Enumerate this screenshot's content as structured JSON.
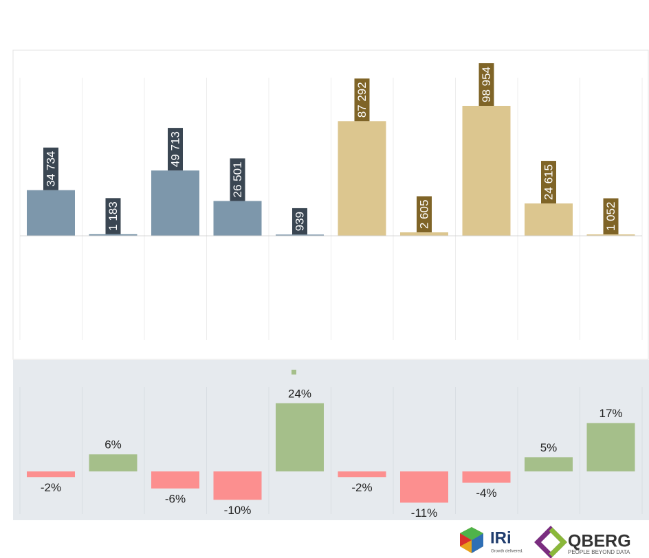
{
  "chart_data": [
    {
      "type": "bar",
      "values": [
        34734,
        1183,
        49713,
        26501,
        939,
        87292,
        2605,
        98954,
        24615,
        1052
      ],
      "value_labels": [
        "34 734",
        "1 183",
        "49 713",
        "26 501",
        "939",
        "87 292",
        "2 605",
        "98 954",
        "24 615",
        "1 052"
      ],
      "colors": [
        "#7d97ab",
        "#7d97ab",
        "#7d97ab",
        "#7d97ab",
        "#7d97ab",
        "#dcc68f",
        "#dcc68f",
        "#dcc68f",
        "#dcc68f",
        "#dcc68f"
      ],
      "label_colors": [
        "#3a4652",
        "#3a4652",
        "#3a4652",
        "#3a4652",
        "#3a4652",
        "#7f6427",
        "#7f6427",
        "#7f6427",
        "#7f6427",
        "#7f6427"
      ],
      "ylim": [
        -80000,
        100000
      ]
    },
    {
      "type": "bar",
      "values": [
        -2,
        6,
        -6,
        -10,
        24,
        -2,
        -11,
        -4,
        5,
        17
      ],
      "value_labels": [
        "-2%",
        "6%",
        "-6%",
        "-10%",
        "24%",
        "-2%",
        "-11%",
        "-4%",
        "5%",
        "17%"
      ],
      "positive_color": "#a5bf8a",
      "negative_color": "#fc8f8f",
      "ylim": [
        -15,
        30
      ]
    }
  ],
  "logos": {
    "iri": "IRi",
    "iri_tagline": "Growth delivered.",
    "qberg": "QBERG",
    "qberg_tagline": "PEOPLE BEYOND DATA"
  }
}
